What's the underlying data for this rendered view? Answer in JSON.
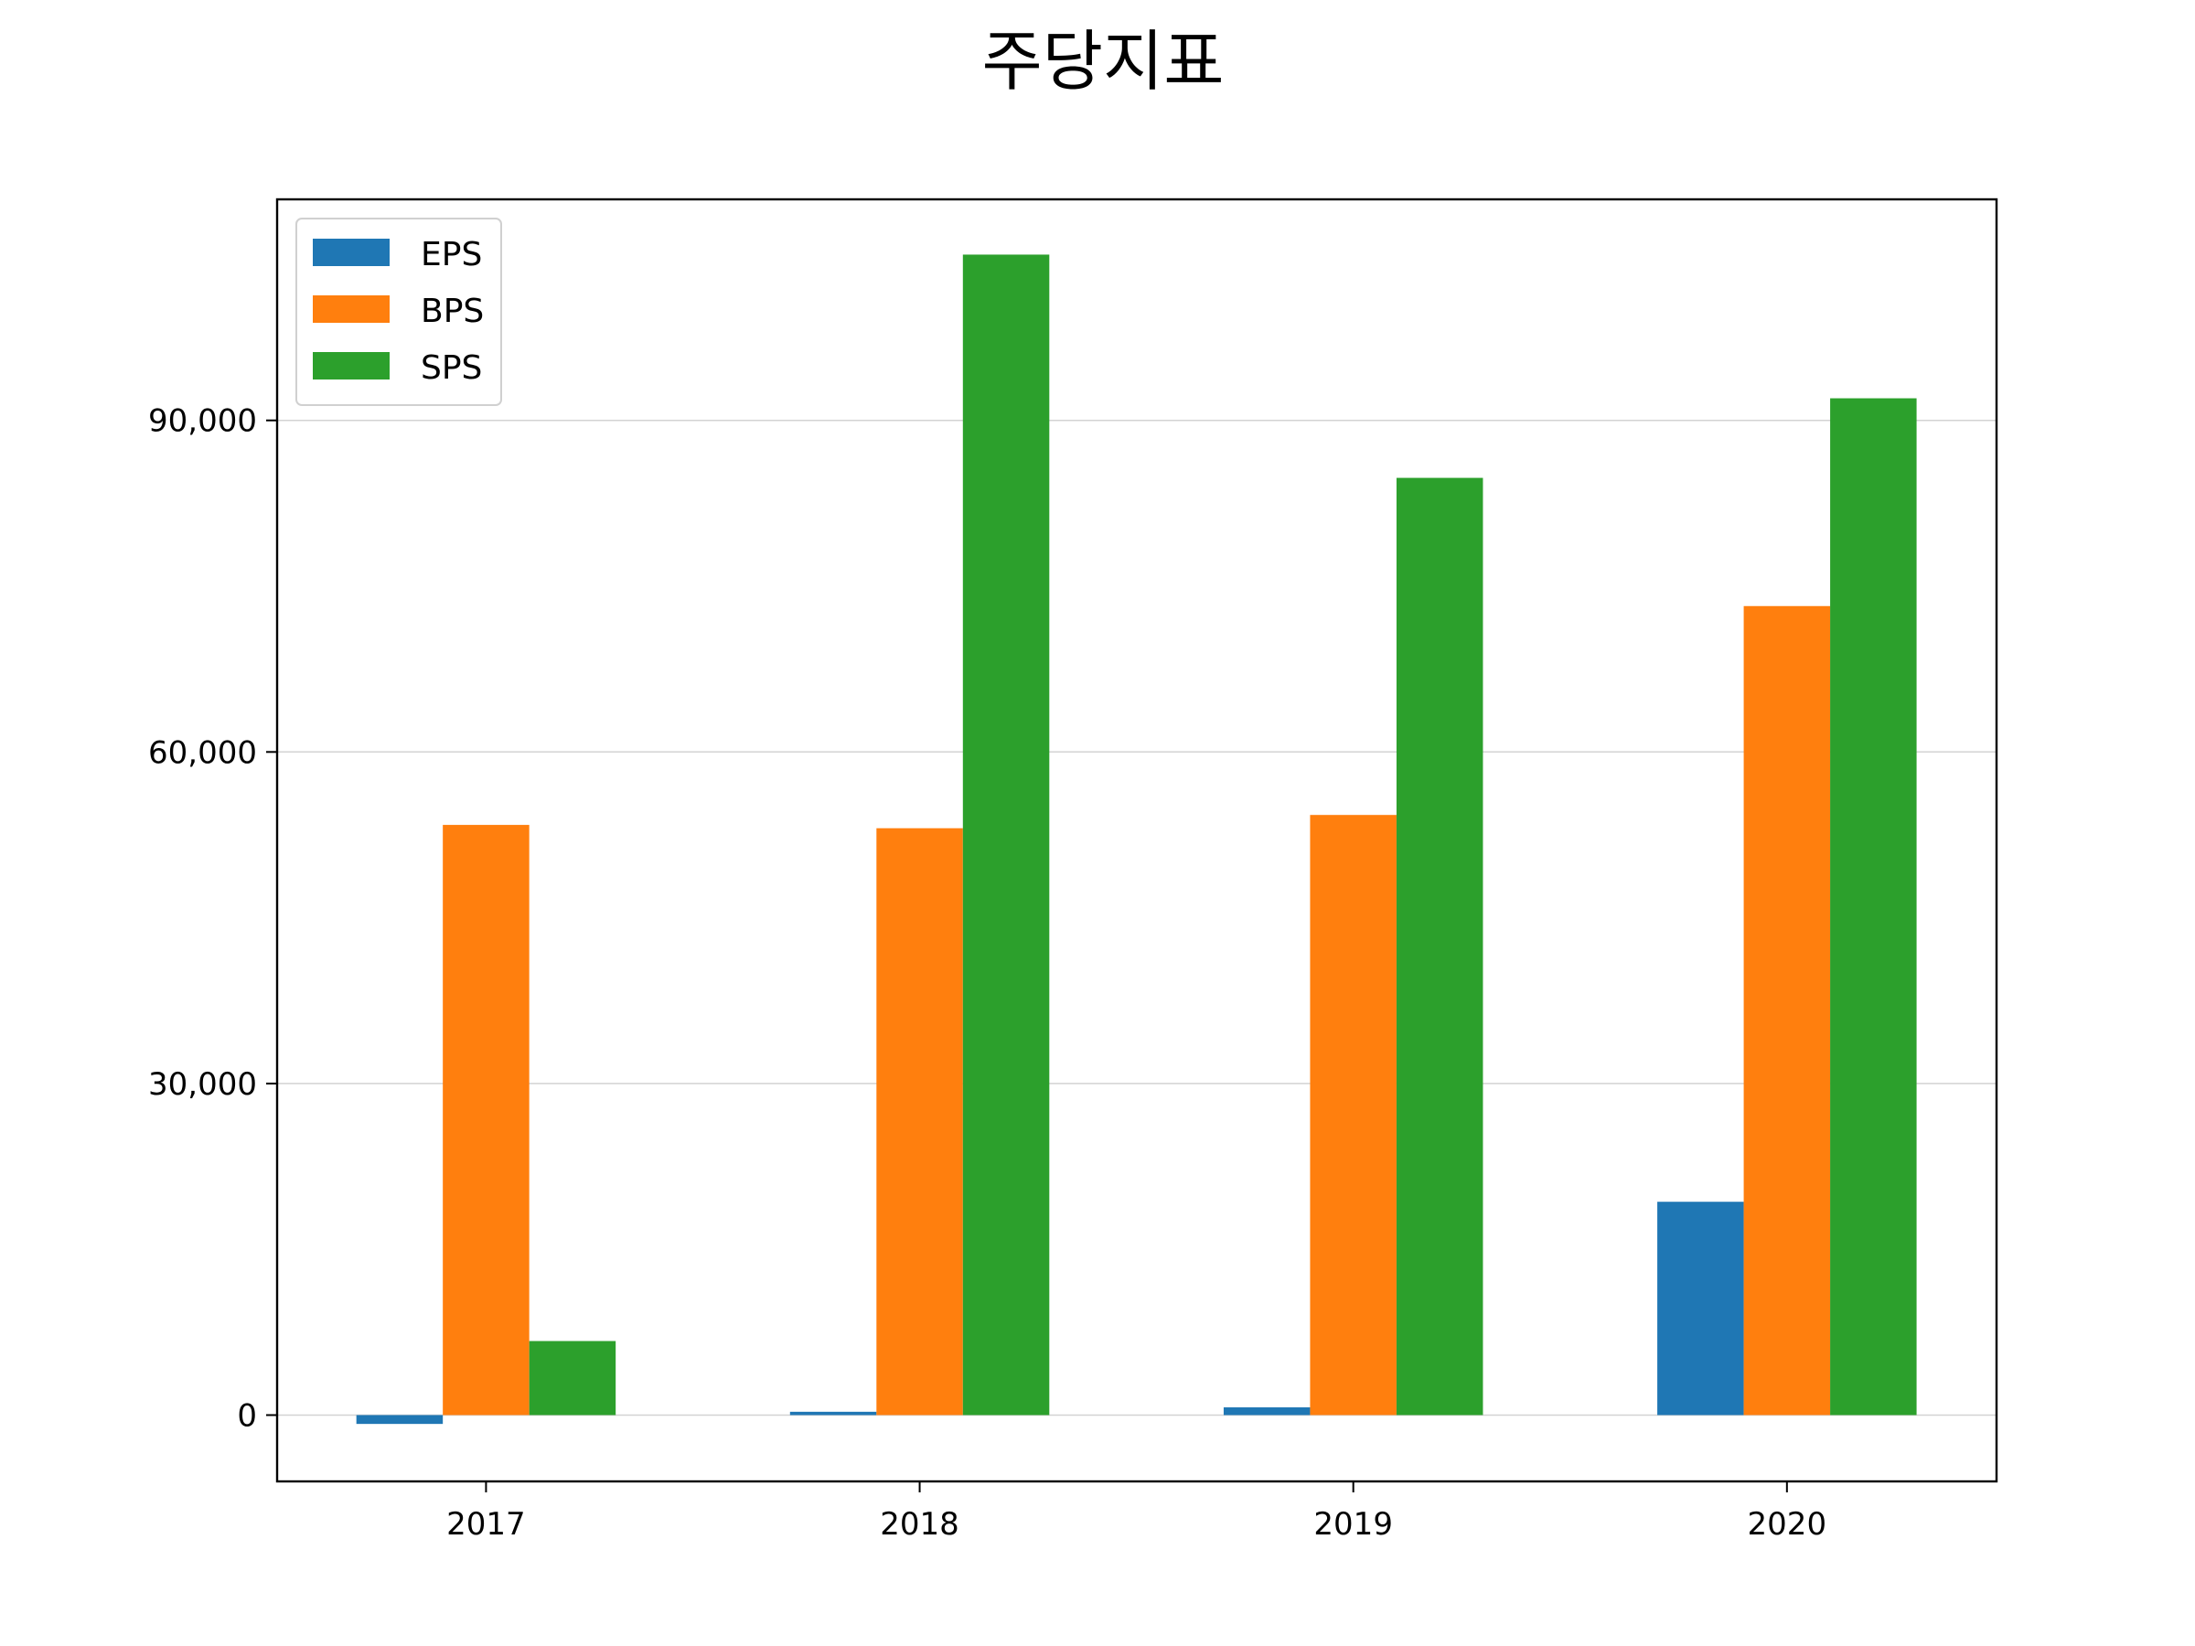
{
  "chart_data": {
    "type": "bar",
    "title": "주당지표",
    "xlabel": "",
    "ylabel": "",
    "categories": [
      "2017",
      "2018",
      "2019",
      "2020"
    ],
    "series": [
      {
        "name": "EPS",
        "color": "#1f77b4",
        "values": [
          -800,
          300,
          700,
          19300
        ]
      },
      {
        "name": "BPS",
        "color": "#ff7f0e",
        "values": [
          53400,
          53100,
          54300,
          73200
        ]
      },
      {
        "name": "SPS",
        "color": "#2ca02c",
        "values": [
          6700,
          105000,
          84800,
          92000
        ]
      }
    ],
    "yticks": [
      0,
      30000,
      60000,
      90000
    ],
    "ytick_labels": [
      "0",
      "30,000",
      "60,000",
      "90,000"
    ],
    "ylim": [
      -6000,
      110000
    ],
    "grid": "horizontal",
    "legend_position": "upper-left"
  }
}
